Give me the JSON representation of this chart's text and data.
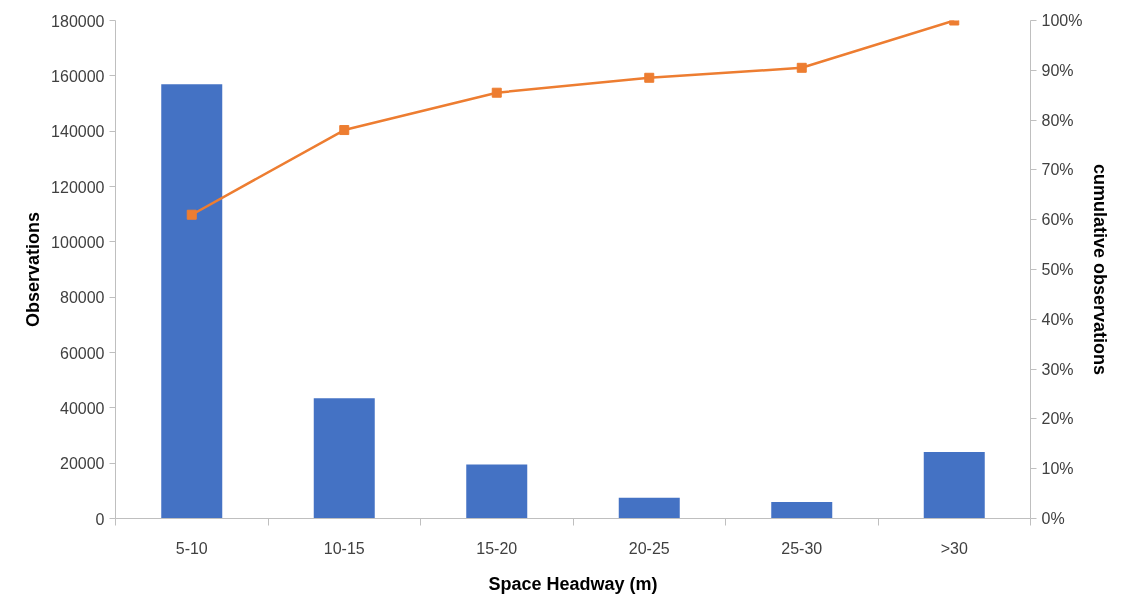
{
  "chart_data": {
    "type": "bar",
    "xlabel": "Space Headway (m)",
    "ylabel": "Observations",
    "y2label": "cumulative observations",
    "categories": [
      "5-10",
      "10-15",
      "15-20",
      "20-25",
      "25-30",
      ">30"
    ],
    "series": [
      {
        "color": "#4472c4",
        "values": [
          157000,
          43500,
          19500,
          7500,
          6000,
          24000
        ]
      },
      {
        "type": "line",
        "axis": "y2",
        "color": "#ed7d31",
        "marker": "square",
        "line_style": "solid",
        "values": [
          61,
          78,
          85.5,
          88.5,
          90.5,
          100
        ]
      }
    ],
    "ylim": [
      0,
      180000
    ],
    "yticks": [
      0,
      20000,
      40000,
      60000,
      80000,
      100000,
      120000,
      140000,
      160000,
      180000
    ],
    "y2lim": [
      0,
      100
    ],
    "y2ticks": [
      {
        "value": 0,
        "label": "0%"
      },
      {
        "value": 10,
        "label": "10%"
      },
      {
        "value": 20,
        "label": "20%"
      },
      {
        "value": 30,
        "label": "30%"
      },
      {
        "value": 40,
        "label": "40%"
      },
      {
        "value": 50,
        "label": "50%"
      },
      {
        "value": 60,
        "label": "60%"
      },
      {
        "value": 70,
        "label": "70%"
      },
      {
        "value": 80,
        "label": "80%"
      },
      {
        "value": 90,
        "label": "90%"
      },
      {
        "value": 100,
        "label": "100%"
      }
    ],
    "grid": false
  }
}
